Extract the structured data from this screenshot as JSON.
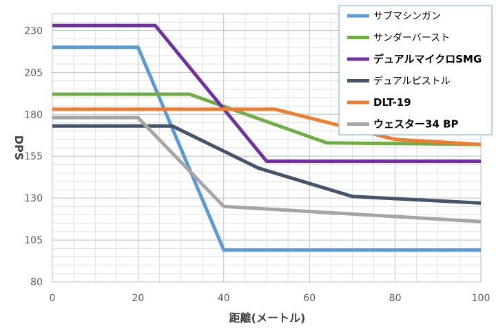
{
  "chart_data": {
    "type": "line",
    "xlabel": "距離(メートル)",
    "ylabel": "DPS",
    "xlim": [
      0,
      100
    ],
    "ylim": [
      80,
      240
    ],
    "xticks": [
      0,
      20,
      40,
      60,
      80,
      100
    ],
    "yticks": [
      80,
      105,
      130,
      155,
      180,
      205,
      230
    ],
    "grid": true,
    "legend_position": "top-right",
    "series": [
      {
        "name": "サブマシンガン",
        "color": "#5B9BD5",
        "points": [
          [
            0,
            220
          ],
          [
            20,
            220
          ],
          [
            40,
            99
          ],
          [
            100,
            99
          ]
        ]
      },
      {
        "name": "サンダーバースト",
        "color": "#70AD47",
        "points": [
          [
            0,
            192
          ],
          [
            32,
            192
          ],
          [
            64,
            163
          ],
          [
            100,
            162
          ]
        ]
      },
      {
        "name": "デュアルマイクロSMG",
        "color": "#7030A0",
        "points": [
          [
            0,
            233
          ],
          [
            24,
            233
          ],
          [
            50,
            152
          ],
          [
            100,
            152
          ]
        ]
      },
      {
        "name": "デュアルピストル",
        "color": "#44546A",
        "points": [
          [
            0,
            173
          ],
          [
            28,
            173
          ],
          [
            48,
            148
          ],
          [
            70,
            131
          ],
          [
            100,
            127
          ]
        ]
      },
      {
        "name": "DLT-19",
        "color": "#ED7D31",
        "points": [
          [
            0,
            183
          ],
          [
            52,
            183
          ],
          [
            80,
            165
          ],
          [
            100,
            162
          ]
        ]
      },
      {
        "name": "ウェスター34 BP",
        "color": "#A5A5A5",
        "points": [
          [
            0,
            178
          ],
          [
            20,
            178
          ],
          [
            40,
            125
          ],
          [
            100,
            116
          ]
        ]
      }
    ]
  }
}
